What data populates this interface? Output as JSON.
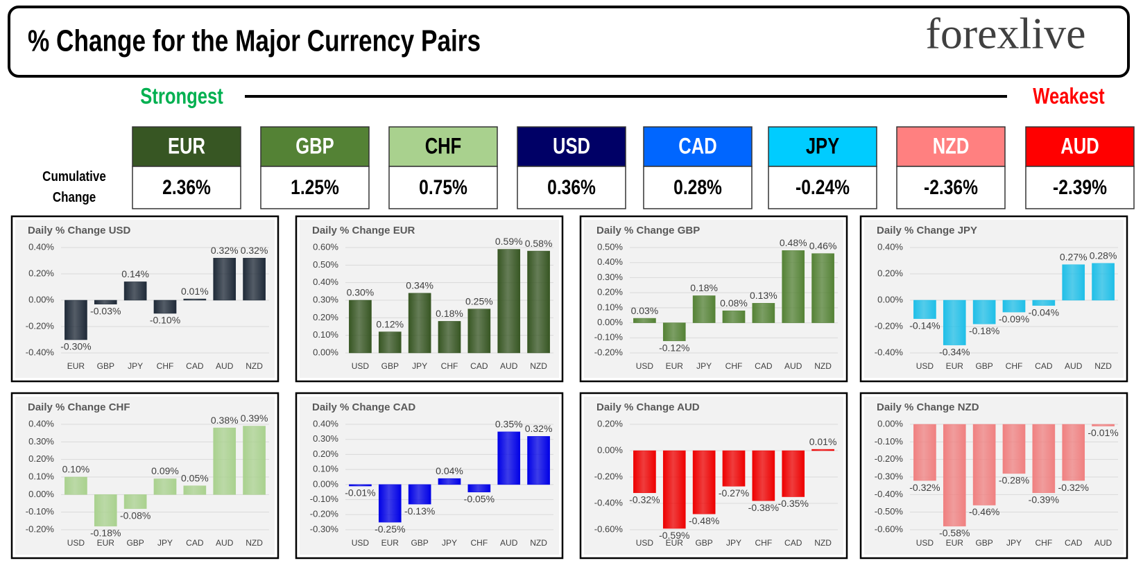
{
  "title": "% Change for the Major Currency Pairs",
  "logo": "forexlive",
  "strongest": "Strongest",
  "weakest": "Weakest",
  "cumulative_label": "Cumulative Change",
  "ranking": [
    {
      "currency": "EUR",
      "change": "2.36%",
      "color": "#375623",
      "text_color": "#ffffff"
    },
    {
      "currency": "GBP",
      "change": "1.25%",
      "color": "#548235",
      "text_color": "#ffffff"
    },
    {
      "currency": "CHF",
      "change": "0.75%",
      "color": "#a9d18e",
      "text_color": "#000000"
    },
    {
      "currency": "USD",
      "change": "0.36%",
      "color": "#000066",
      "text_color": "#ffffff"
    },
    {
      "currency": "CAD",
      "change": "0.28%",
      "color": "#0066ff",
      "text_color": "#ffffff"
    },
    {
      "currency": "JPY",
      "change": "-0.24%",
      "color": "#00ccff",
      "text_color": "#000000"
    },
    {
      "currency": "NZD",
      "change": "-2.36%",
      "color": "#ff8080",
      "text_color": "#ffffff"
    },
    {
      "currency": "AUD",
      "change": "-2.39%",
      "color": "#ff0000",
      "text_color": "#ffffff"
    }
  ],
  "chart_data": [
    {
      "type": "bar",
      "title": "Daily % Change USD",
      "color": "#1f2a38",
      "grid": true,
      "categories": [
        "EUR",
        "GBP",
        "JPY",
        "CHF",
        "CAD",
        "AUD",
        "NZD"
      ],
      "values": [
        -0.3,
        -0.03,
        0.14,
        -0.1,
        0.01,
        0.32,
        0.32
      ],
      "value_labels": [
        "-0.30%",
        "-0.03%",
        "0.14%",
        "-0.10%",
        "0.01%",
        "0.32%",
        "0.32%"
      ],
      "ylim": [
        -0.4,
        0.4
      ],
      "yticks": [
        {
          "value": -0.4,
          "label": "-0.40%"
        },
        {
          "value": -0.2,
          "label": "-0.20%"
        },
        {
          "value": 0,
          "label": "0.00%"
        },
        {
          "value": 0.2,
          "label": "0.20%"
        },
        {
          "value": 0.4,
          "label": "0.40%"
        }
      ]
    },
    {
      "type": "bar",
      "title": "Daily % Change EUR",
      "color": "#375623",
      "grid": true,
      "categories": [
        "USD",
        "GBP",
        "JPY",
        "CHF",
        "CAD",
        "AUD",
        "NZD"
      ],
      "values": [
        0.3,
        0.12,
        0.34,
        0.18,
        0.25,
        0.59,
        0.58
      ],
      "value_labels": [
        "0.30%",
        "0.12%",
        "0.34%",
        "0.18%",
        "0.25%",
        "0.59%",
        "0.58%"
      ],
      "ylim": [
        0,
        0.6
      ],
      "yticks": [
        {
          "value": 0,
          "label": "0.00%"
        },
        {
          "value": 0.1,
          "label": "0.10%"
        },
        {
          "value": 0.2,
          "label": "0.20%"
        },
        {
          "value": 0.3,
          "label": "0.30%"
        },
        {
          "value": 0.4,
          "label": "0.40%"
        },
        {
          "value": 0.5,
          "label": "0.50%"
        },
        {
          "value": 0.6,
          "label": "0.60%"
        }
      ]
    },
    {
      "type": "bar",
      "title": "Daily % Change GBP",
      "color": "#548235",
      "grid": true,
      "categories": [
        "USD",
        "EUR",
        "JPY",
        "CHF",
        "CAD",
        "AUD",
        "NZD"
      ],
      "values": [
        0.03,
        -0.12,
        0.18,
        0.08,
        0.13,
        0.48,
        0.46
      ],
      "value_labels": [
        "0.03%",
        "-0.12%",
        "0.18%",
        "0.08%",
        "0.13%",
        "0.48%",
        "0.46%"
      ],
      "ylim": [
        -0.2,
        0.5
      ],
      "yticks": [
        {
          "value": -0.2,
          "label": "-0.20%"
        },
        {
          "value": -0.1,
          "label": "-0.10%"
        },
        {
          "value": 0,
          "label": "0.00%"
        },
        {
          "value": 0.1,
          "label": "0.10%"
        },
        {
          "value": 0.2,
          "label": "0.20%"
        },
        {
          "value": 0.3,
          "label": "0.30%"
        },
        {
          "value": 0.4,
          "label": "0.40%"
        },
        {
          "value": 0.5,
          "label": "0.50%"
        }
      ]
    },
    {
      "type": "bar",
      "title": "Daily % Change JPY",
      "color": "#1fbfe8",
      "grid": true,
      "categories": [
        "USD",
        "EUR",
        "GBP",
        "CHF",
        "CAD",
        "AUD",
        "NZD"
      ],
      "values": [
        -0.14,
        -0.34,
        -0.18,
        -0.09,
        -0.04,
        0.27,
        0.28
      ],
      "value_labels": [
        "-0.14%",
        "-0.34%",
        "-0.18%",
        "-0.09%",
        "-0.04%",
        "0.27%",
        "0.28%"
      ],
      "ylim": [
        -0.4,
        0.4
      ],
      "yticks": [
        {
          "value": -0.4,
          "label": "-0.40%"
        },
        {
          "value": -0.2,
          "label": "-0.20%"
        },
        {
          "value": 0,
          "label": "0.00%"
        },
        {
          "value": 0.2,
          "label": "0.20%"
        },
        {
          "value": 0.4,
          "label": "0.40%"
        }
      ]
    },
    {
      "type": "bar",
      "title": "Daily % Change CHF",
      "color": "#a9d18e",
      "grid": true,
      "categories": [
        "USD",
        "EUR",
        "GBP",
        "JPY",
        "CAD",
        "AUD",
        "NZD"
      ],
      "values": [
        0.1,
        -0.18,
        -0.08,
        0.09,
        0.05,
        0.38,
        0.39
      ],
      "value_labels": [
        "0.10%",
        "-0.18%",
        "-0.08%",
        "0.09%",
        "0.05%",
        "0.38%",
        "0.39%"
      ],
      "ylim": [
        -0.2,
        0.4
      ],
      "yticks": [
        {
          "value": -0.2,
          "label": "-0.20%"
        },
        {
          "value": -0.1,
          "label": "-0.10%"
        },
        {
          "value": 0,
          "label": "0.00%"
        },
        {
          "value": 0.1,
          "label": "0.10%"
        },
        {
          "value": 0.2,
          "label": "0.20%"
        },
        {
          "value": 0.3,
          "label": "0.30%"
        },
        {
          "value": 0.4,
          "label": "0.40%"
        }
      ]
    },
    {
      "type": "bar",
      "title": "Daily % Change CAD",
      "color": "#0000e6",
      "grid": true,
      "categories": [
        "USD",
        "EUR",
        "GBP",
        "JPY",
        "CHF",
        "AUD",
        "NZD"
      ],
      "values": [
        -0.01,
        -0.25,
        -0.13,
        0.04,
        -0.05,
        0.35,
        0.32
      ],
      "value_labels": [
        "-0.01%",
        "-0.25%",
        "-0.13%",
        "0.04%",
        "-0.05%",
        "0.35%",
        "0.32%"
      ],
      "ylim": [
        -0.3,
        0.4
      ],
      "yticks": [
        {
          "value": -0.3,
          "label": "-0.30%"
        },
        {
          "value": -0.2,
          "label": "-0.20%"
        },
        {
          "value": -0.1,
          "label": "-0.10%"
        },
        {
          "value": 0,
          "label": "0.00%"
        },
        {
          "value": 0.1,
          "label": "0.10%"
        },
        {
          "value": 0.2,
          "label": "0.20%"
        },
        {
          "value": 0.3,
          "label": "0.30%"
        },
        {
          "value": 0.4,
          "label": "0.40%"
        }
      ]
    },
    {
      "type": "bar",
      "title": "Daily % Change AUD",
      "color": "#ee0000",
      "grid": true,
      "categories": [
        "USD",
        "EUR",
        "GBP",
        "JPY",
        "CHF",
        "CAD",
        "NZD"
      ],
      "values": [
        -0.32,
        -0.59,
        -0.48,
        -0.27,
        -0.38,
        -0.35,
        0.01
      ],
      "value_labels": [
        "-0.32%",
        "-0.59%",
        "-0.48%",
        "-0.27%",
        "-0.38%",
        "-0.35%",
        "0.01%"
      ],
      "ylim": [
        -0.6,
        0.2
      ],
      "yticks": [
        {
          "value": -0.6,
          "label": "-0.60%"
        },
        {
          "value": -0.4,
          "label": "-0.40%"
        },
        {
          "value": -0.2,
          "label": "-0.20%"
        },
        {
          "value": 0,
          "label": "0.00%"
        },
        {
          "value": 0.2,
          "label": "0.20%"
        }
      ]
    },
    {
      "type": "bar",
      "title": "Daily % Change NZD",
      "color": "#f08080",
      "grid": true,
      "categories": [
        "USD",
        "EUR",
        "GBP",
        "JPY",
        "CHF",
        "CAD",
        "AUD"
      ],
      "values": [
        -0.32,
        -0.58,
        -0.46,
        -0.28,
        -0.39,
        -0.32,
        -0.01
      ],
      "value_labels": [
        "-0.32%",
        "-0.58%",
        "-0.46%",
        "-0.28%",
        "-0.39%",
        "-0.32%",
        "-0.01%"
      ],
      "ylim": [
        -0.6,
        0
      ],
      "yticks": [
        {
          "value": -0.6,
          "label": "-0.60%"
        },
        {
          "value": -0.5,
          "label": "-0.50%"
        },
        {
          "value": -0.4,
          "label": "-0.40%"
        },
        {
          "value": -0.3,
          "label": "-0.30%"
        },
        {
          "value": -0.2,
          "label": "-0.20%"
        },
        {
          "value": -0.1,
          "label": "-0.10%"
        },
        {
          "value": 0,
          "label": "0.00%"
        }
      ]
    }
  ]
}
